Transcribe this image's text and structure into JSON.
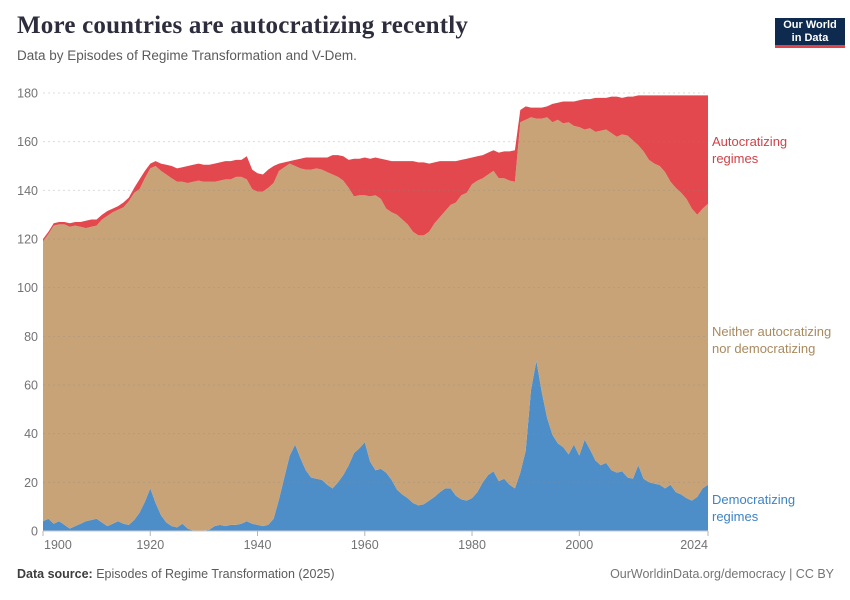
{
  "header": {
    "title": "More countries are autocratizing recently",
    "subtitle": "Data by Episodes of Regime Transformation and V-Dem.",
    "logo": {
      "line1": "Our World",
      "line2": "in Data",
      "bg_color": "#0e2a4e",
      "accent_color": "#e04448"
    }
  },
  "chart_data": {
    "type": "area",
    "stacked": true,
    "title": "More countries are autocratizing recently",
    "subtitle": "Data by Episodes of Regime Transformation and V-Dem.",
    "xlabel": "",
    "ylabel": "",
    "xlim": [
      1900,
      2024
    ],
    "ylim": [
      0,
      180
    ],
    "grid": "horizontal-dashed",
    "legend_position": "right-of-plot",
    "y_ticks": [
      0,
      20,
      40,
      60,
      80,
      100,
      120,
      140,
      160,
      180
    ],
    "x_ticks": [
      1900,
      1920,
      1940,
      1960,
      1980,
      2000,
      2024
    ],
    "years": [
      1900,
      1901,
      1902,
      1903,
      1904,
      1905,
      1906,
      1907,
      1908,
      1909,
      1910,
      1911,
      1912,
      1913,
      1914,
      1915,
      1916,
      1917,
      1918,
      1919,
      1920,
      1921,
      1922,
      1923,
      1924,
      1925,
      1926,
      1927,
      1928,
      1929,
      1930,
      1931,
      1932,
      1933,
      1934,
      1935,
      1936,
      1937,
      1938,
      1939,
      1940,
      1941,
      1942,
      1943,
      1944,
      1945,
      1946,
      1947,
      1948,
      1949,
      1950,
      1951,
      1952,
      1953,
      1954,
      1955,
      1956,
      1957,
      1958,
      1959,
      1960,
      1961,
      1962,
      1963,
      1964,
      1965,
      1966,
      1967,
      1968,
      1969,
      1970,
      1971,
      1972,
      1973,
      1974,
      1975,
      1976,
      1977,
      1978,
      1979,
      1980,
      1981,
      1982,
      1983,
      1984,
      1985,
      1986,
      1987,
      1988,
      1989,
      1990,
      1991,
      1992,
      1993,
      1994,
      1995,
      1996,
      1997,
      1998,
      1999,
      2000,
      2001,
      2002,
      2003,
      2004,
      2005,
      2006,
      2007,
      2008,
      2009,
      2010,
      2011,
      2012,
      2013,
      2014,
      2015,
      2016,
      2017,
      2018,
      2019,
      2020,
      2021,
      2022,
      2023,
      2024
    ],
    "series": [
      {
        "id": "democratizing",
        "label": "Democratizing regimes",
        "color": "#4e8ec8",
        "label_color": "#3d83c5",
        "values": [
          4,
          5,
          3,
          4,
          2.5,
          1,
          2,
          3,
          4,
          4.5,
          5,
          3.5,
          2,
          3,
          4,
          3,
          2.5,
          4.5,
          7.5,
          12,
          17.5,
          11.5,
          6.5,
          3.5,
          2,
          1.5,
          3,
          1,
          0.2,
          0.2,
          0.2,
          0.5,
          2,
          2.5,
          2,
          2.5,
          2.5,
          3,
          4,
          3,
          2.5,
          2,
          2.5,
          5,
          13,
          22,
          31,
          35.5,
          30,
          25,
          22,
          21.5,
          21,
          19,
          17.5,
          20,
          23,
          27,
          32,
          34,
          36.5,
          28.5,
          25,
          25.5,
          24,
          21,
          17,
          15,
          13.5,
          11.5,
          10.5,
          11,
          12.5,
          14,
          16,
          17.5,
          17.5,
          14.5,
          13,
          12.5,
          13.5,
          16,
          20,
          23,
          24.5,
          20.5,
          21.5,
          19,
          17.5,
          24,
          33,
          58,
          70,
          57,
          46.5,
          39.5,
          36,
          34.5,
          31.5,
          35.5,
          31,
          37.5,
          33.5,
          29,
          27,
          28,
          25,
          24,
          24.5,
          22,
          21.5,
          27,
          21.5,
          20,
          19.5,
          19,
          17.5,
          19,
          16,
          15,
          13.5,
          12.5,
          14,
          17.5,
          19
        ]
      },
      {
        "id": "neither",
        "label": "Neither autocratizing nor democratizing",
        "color": "#c8a377",
        "label_color": "#a98a5f",
        "values": [
          115,
          117,
          122.5,
          122,
          123.5,
          124,
          123.5,
          122,
          120.5,
          120.5,
          120.5,
          124.5,
          127.5,
          128,
          128,
          130,
          133,
          134.5,
          133,
          133,
          131.5,
          138.5,
          141.5,
          143,
          143,
          142,
          140.5,
          142,
          143.3,
          143.8,
          143.3,
          143,
          141.5,
          141.5,
          142.5,
          142,
          143,
          142.5,
          140.5,
          137.5,
          137,
          137.5,
          138.5,
          138,
          135,
          127.5,
          120,
          114.5,
          119,
          123.5,
          126.5,
          127.5,
          127.5,
          128.5,
          129,
          125.5,
          121,
          114,
          105.5,
          104,
          101.5,
          109,
          113,
          111,
          108.5,
          110,
          113,
          113,
          112.5,
          111.5,
          111,
          110.5,
          110.5,
          112.5,
          113,
          114,
          116.5,
          120.5,
          125,
          126.5,
          129,
          128,
          125,
          123.5,
          123.5,
          124.5,
          123.5,
          125,
          126,
          144,
          136,
          112,
          99.5,
          112.5,
          123.5,
          128.5,
          133,
          133,
          136.5,
          131,
          135,
          127.5,
          132,
          135,
          137.5,
          137,
          138.5,
          138,
          138.5,
          140.5,
          139,
          131.5,
          134.5,
          132.5,
          131.5,
          131,
          130,
          124.5,
          125,
          124,
          123,
          120,
          116,
          115,
          115.5
        ]
      },
      {
        "id": "autocratizing",
        "label": "Autocratizing regimes",
        "color": "#e2484e",
        "label_color": "#d04248",
        "values": [
          1,
          1,
          1,
          1,
          1,
          1.5,
          1.5,
          2,
          3,
          3,
          2.5,
          2,
          2,
          1.5,
          1.5,
          2,
          1.5,
          2,
          4,
          3,
          2,
          2,
          3,
          4,
          5,
          5.5,
          6,
          7,
          7,
          7,
          7,
          7,
          7.5,
          7.5,
          7.5,
          7.5,
          7,
          7,
          9.5,
          8,
          7.5,
          7,
          7.5,
          7,
          3,
          2,
          1,
          2.5,
          4,
          5,
          5,
          4.5,
          5,
          6,
          8,
          9,
          10,
          11.5,
          15.5,
          15,
          15.5,
          15.5,
          15.5,
          16.5,
          20,
          21,
          22,
          24,
          26,
          29,
          30,
          30,
          28,
          25,
          23,
          20.5,
          18,
          17,
          14.5,
          14,
          11,
          10,
          9.5,
          9,
          8.5,
          10.5,
          11,
          12,
          13,
          5,
          5.5,
          4,
          4.5,
          4.5,
          4.5,
          7.5,
          7,
          9,
          8.5,
          10,
          11,
          12.5,
          12,
          14,
          13.5,
          13,
          15,
          16.5,
          15,
          16,
          18,
          20.5,
          23,
          26.5,
          28,
          29,
          31.5,
          35.5,
          38,
          40,
          42.5,
          46.5,
          49,
          46.5,
          44.5
        ]
      }
    ]
  },
  "footer": {
    "source_label": "Data source:",
    "source_value": "Episodes of Regime Transformation (2025)",
    "credit": "OurWorldinData.org/democracy | CC BY"
  }
}
